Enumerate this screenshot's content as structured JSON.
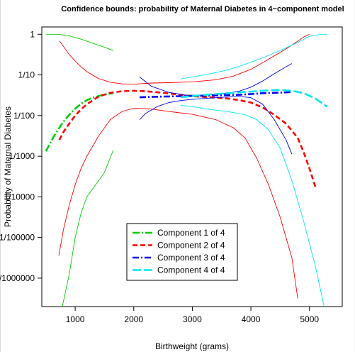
{
  "chart_data": {
    "type": "line",
    "title": "Confidence bounds: probability of Maternal Diabetes in 4−component model",
    "xlabel": "Birthweight (grams)",
    "ylabel": "Probability of Maternal Diabetes",
    "xlim": [
      430,
      5560
    ],
    "ylim_log10": [
      -6.7,
      0.18
    ],
    "log_y": true,
    "x_ticks": [
      1000,
      2000,
      3000,
      4000,
      5000
    ],
    "x_tick_labels": [
      "1000",
      "2000",
      "3000",
      "4000",
      "5000"
    ],
    "y_ticks_log10": [
      0,
      -1,
      -2,
      -3,
      -4,
      -5,
      -6
    ],
    "y_tick_labels": [
      "1",
      "1/10",
      "1/100",
      "1/1000",
      "1/10000",
      "1/100000",
      "1/1000000"
    ],
    "grid": false,
    "legend_position": "bottom-center",
    "series": [
      {
        "name": "Component 1 of 4",
        "color": "#00cd00",
        "dash": "10,3,2,3",
        "estimate": {
          "x": [
            500,
            600,
            700,
            800,
            900,
            1000,
            1100,
            1200,
            1300,
            1400,
            1500,
            1600,
            1650
          ],
          "log10_y": [
            -2.88,
            -2.6,
            -2.36,
            -2.15,
            -1.98,
            -1.83,
            -1.71,
            -1.62,
            -1.56,
            -1.52,
            -1.48,
            -1.46,
            -1.45
          ]
        },
        "upper": {
          "x": [
            500,
            700,
            900,
            1100,
            1300,
            1500,
            1650
          ],
          "log10_y": [
            0.0,
            0.0,
            -0.04,
            -0.12,
            -0.22,
            -0.32,
            -0.4
          ]
        },
        "lower": {
          "x": [
            780,
            900,
            1000,
            1100,
            1200,
            1300,
            1400,
            1500,
            1650
          ],
          "log10_y": [
            -6.7,
            -5.9,
            -5.0,
            -4.4,
            -4.0,
            -3.8,
            -3.6,
            -3.4,
            -2.85
          ]
        }
      },
      {
        "name": "Component 2 of 4",
        "color": "#ff0000",
        "dash": "7,4",
        "estimate": {
          "x": [
            730,
            800,
            900,
            1000,
            1100,
            1200,
            1400,
            1600,
            1800,
            2000,
            2200,
            2500,
            2800,
            3000,
            3300,
            3600,
            3800,
            4000,
            4200,
            4400,
            4600,
            4800,
            4900,
            5000,
            5100
          ],
          "log10_y": [
            -2.6,
            -2.4,
            -2.2,
            -2.0,
            -1.85,
            -1.72,
            -1.53,
            -1.44,
            -1.4,
            -1.39,
            -1.4,
            -1.44,
            -1.49,
            -1.52,
            -1.55,
            -1.58,
            -1.62,
            -1.68,
            -1.8,
            -1.98,
            -2.2,
            -2.55,
            -2.9,
            -3.3,
            -3.75
          ]
        },
        "upper": {
          "x": [
            730,
            800,
            900,
            1000,
            1100,
            1200,
            1400,
            1600,
            1800,
            2000,
            2300,
            2600,
            3000,
            3400,
            3700,
            4000,
            4200,
            4400,
            4600,
            4800,
            4900,
            5000
          ],
          "log10_y": [
            -0.16,
            -0.3,
            -0.5,
            -0.66,
            -0.8,
            -0.92,
            -1.09,
            -1.18,
            -1.22,
            -1.23,
            -1.2,
            -1.19,
            -1.17,
            -1.12,
            -1.03,
            -0.86,
            -0.7,
            -0.53,
            -0.36,
            -0.17,
            -0.07,
            0.0
          ]
        },
        "lower": {
          "x": [
            720,
            800,
            900,
            1000,
            1100,
            1200,
            1400,
            1600,
            1800,
            2000,
            2300,
            2600,
            3000,
            3400,
            3700,
            3900,
            4100,
            4300,
            4500,
            4700,
            4800
          ],
          "log10_y": [
            -5.45,
            -4.8,
            -4.2,
            -3.7,
            -3.3,
            -3.0,
            -2.5,
            -2.1,
            -1.9,
            -1.82,
            -1.84,
            -1.9,
            -1.97,
            -2.1,
            -2.3,
            -2.55,
            -3.05,
            -3.7,
            -4.5,
            -5.5,
            -6.5
          ]
        }
      },
      {
        "name": "Component 3 of 4",
        "color": "#0000ee",
        "dash": "9,3,2,3",
        "estimate": {
          "x": [
            2100,
            2300,
            2600,
            2900,
            3200,
            3500,
            3800,
            4000,
            4200,
            4400,
            4600,
            4700
          ],
          "log10_y": [
            -1.55,
            -1.54,
            -1.53,
            -1.52,
            -1.51,
            -1.5,
            -1.49,
            -1.47,
            -1.45,
            -1.44,
            -1.43,
            -1.42
          ]
        },
        "upper": {
          "x": [
            2100,
            2300,
            2600,
            2900,
            3200,
            3500,
            3800,
            4000,
            4200,
            4400,
            4600,
            4700
          ],
          "log10_y": [
            -1.05,
            -1.28,
            -1.43,
            -1.5,
            -1.5,
            -1.47,
            -1.4,
            -1.3,
            -1.15,
            -0.97,
            -0.8,
            -0.72
          ]
        },
        "lower": {
          "x": [
            2100,
            2200,
            2400,
            2600,
            2800,
            3000,
            3200,
            3500,
            3800,
            4000,
            4200,
            4400,
            4600,
            4700
          ],
          "log10_y": [
            -2.1,
            -1.95,
            -1.78,
            -1.68,
            -1.63,
            -1.6,
            -1.58,
            -1.55,
            -1.53,
            -1.56,
            -1.72,
            -2.1,
            -2.6,
            -2.95
          ]
        }
      },
      {
        "name": "Component 4 of 4",
        "color": "#00e5ee",
        "dash": "12,4",
        "estimate": {
          "x": [
            2800,
            3000,
            3300,
            3600,
            3900,
            4100,
            4300,
            4500,
            4700,
            4900,
            5100,
            5300
          ],
          "log10_y": [
            -1.55,
            -1.52,
            -1.48,
            -1.45,
            -1.42,
            -1.4,
            -1.38,
            -1.37,
            -1.39,
            -1.45,
            -1.58,
            -1.78
          ]
        },
        "upper": {
          "x": [
            2800,
            3000,
            3300,
            3600,
            3900,
            4200,
            4500,
            4800,
            5000,
            5200,
            5300
          ],
          "log10_y": [
            -1.1,
            -1.05,
            -0.97,
            -0.88,
            -0.74,
            -0.58,
            -0.4,
            -0.2,
            -0.05,
            0.0,
            0.0
          ]
        },
        "lower": {
          "x": [
            2800,
            3000,
            3300,
            3600,
            3900,
            4100,
            4300,
            4500,
            4700,
            4900,
            5100,
            5250
          ],
          "log10_y": [
            -1.75,
            -1.78,
            -1.85,
            -1.9,
            -1.98,
            -2.1,
            -2.35,
            -2.8,
            -3.6,
            -4.6,
            -5.7,
            -6.7
          ]
        }
      }
    ]
  }
}
